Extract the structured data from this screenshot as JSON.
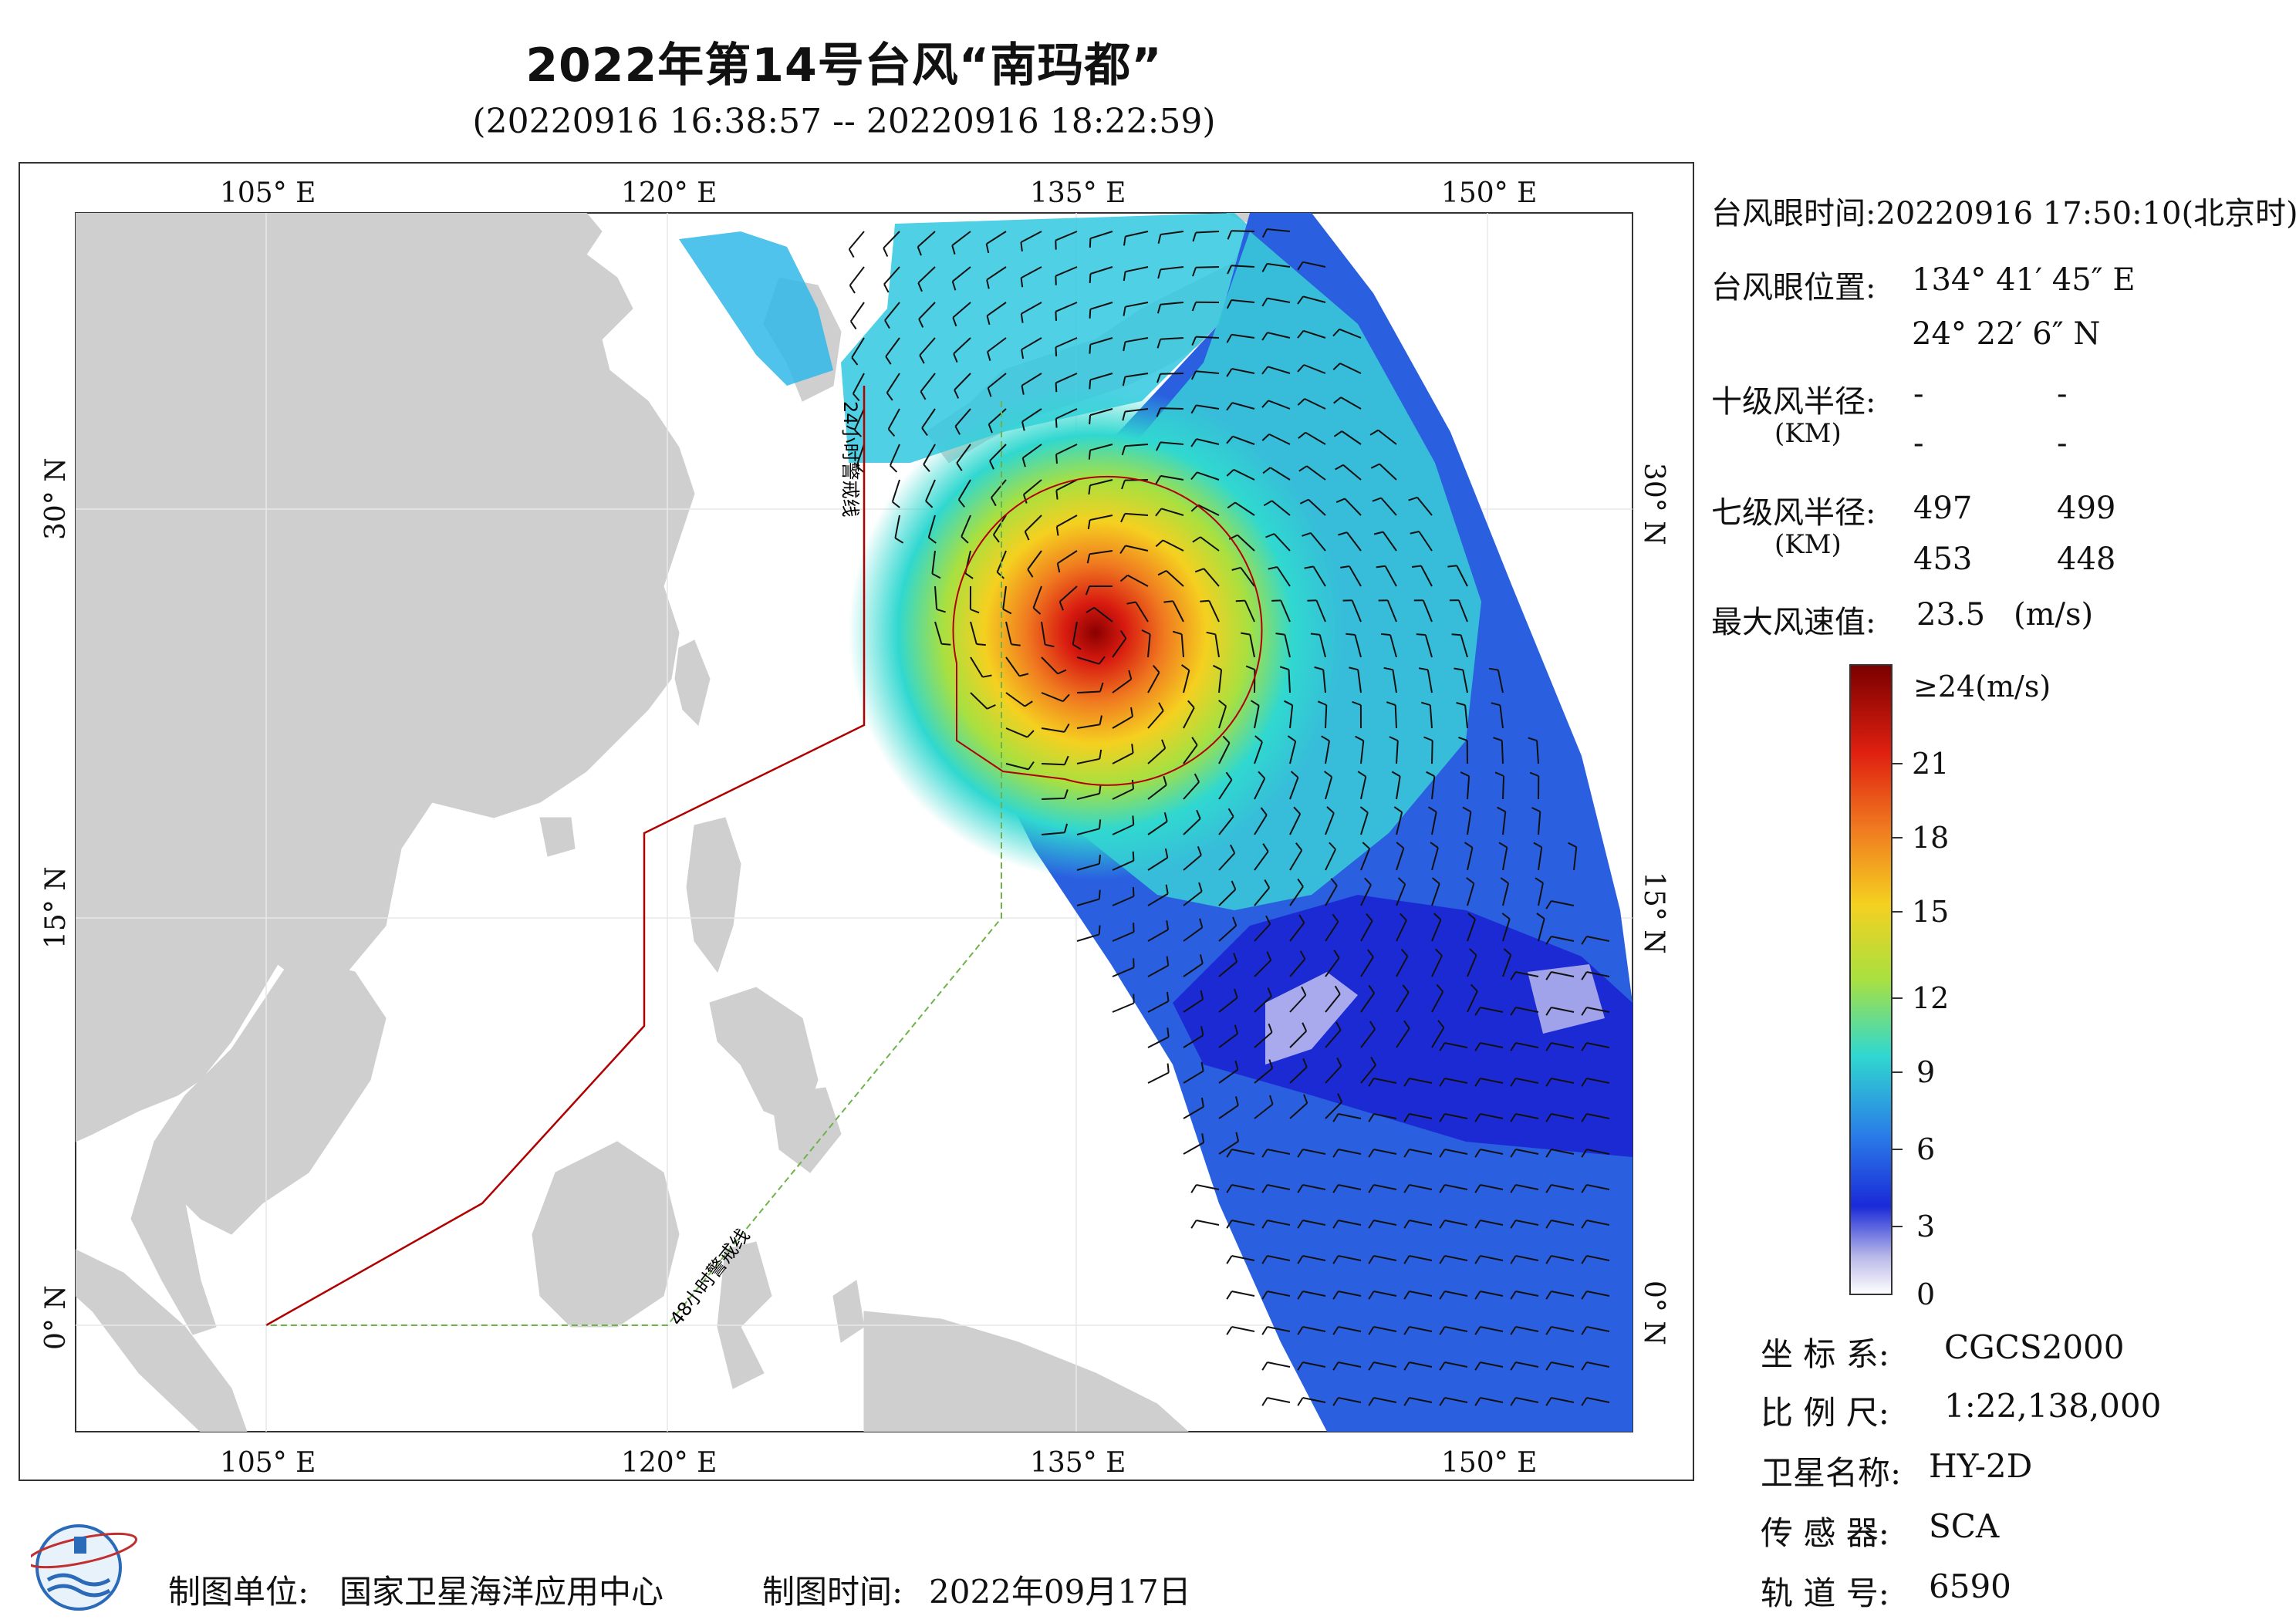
{
  "title": "2022年第14号台风“南玛都”",
  "subtitle": "(20220916 16:38:57 -- 20220916 18:22:59)",
  "map": {
    "lon_labels": [
      "105° E",
      "120° E",
      "135° E",
      "150° E"
    ],
    "lat_labels": [
      "30° N",
      "15° N",
      "0° N"
    ],
    "line_24h_label": "24小时警戒线",
    "line_48h_label": "48小时警戒线",
    "colors": {
      "land": "#cfcfcf",
      "sea": "#ffffff",
      "line_24h": "#b00000",
      "line_48h": "#6fb24a"
    }
  },
  "info": {
    "eye_time_label": "台风眼时间:",
    "eye_time_value": "20220916 17:50:10(北京时)",
    "eye_pos_label": "台风眼位置:",
    "eye_lon": "134° 41′ 45″ E",
    "eye_lat": "24° 22′ 6″ N",
    "r10_label": "十级风半径:",
    "r10_unit": "(KM)",
    "r10_values": [
      "-",
      "-",
      "-",
      "-"
    ],
    "r7_label": "七级风半径:",
    "r7_unit": "(KM)",
    "r7_values": [
      "497",
      "499",
      "453",
      "448"
    ],
    "max_wind_label": "最大风速值:",
    "max_wind_value": "23.5",
    "max_wind_unit": "(m/s)"
  },
  "colorbar": {
    "top_label": "≥24(m/s)",
    "ticks": [
      "21",
      "18",
      "15",
      "12",
      "9",
      "6",
      "3",
      "0"
    ],
    "colors": [
      "#7a0000",
      "#e02010",
      "#f07a20",
      "#f5d020",
      "#a8e040",
      "#30d8d0",
      "#2a7ae8",
      "#1a2ad8",
      "#b8b8e8",
      "#ffffff"
    ]
  },
  "meta": {
    "crs_label": "坐 标 系:",
    "crs_value": "CGCS2000",
    "scale_label": "比 例 尺:",
    "scale_value": "1:22,138,000",
    "sat_label": "卫星名称:",
    "sat_value": "HY-2D",
    "sensor_label": "传 感 器:",
    "sensor_value": "SCA",
    "orbit_label": "轨 道 号:",
    "orbit_value": "6590"
  },
  "footer": {
    "org_label": "制图单位:",
    "org_value": "国家卫星海洋应用中心",
    "date_label": "制图时间:",
    "date_value": "2022年09月17日"
  }
}
